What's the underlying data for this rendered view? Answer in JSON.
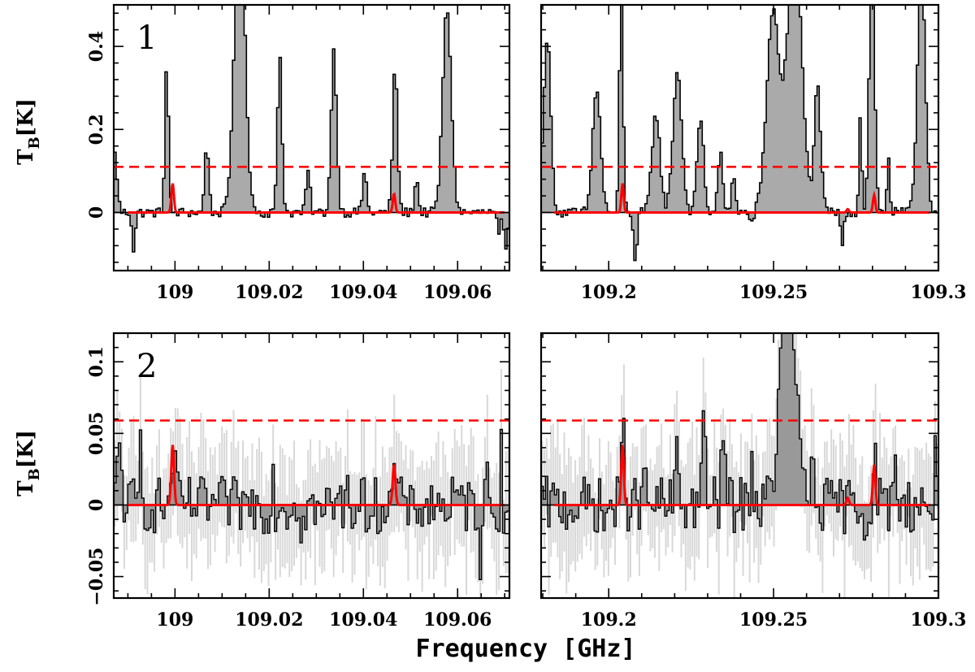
{
  "figure": {
    "xlabel": "Frequency [GHz]",
    "ylabel_main": "T",
    "ylabel_sub": "B",
    "ylabel_unit": "[K]"
  },
  "colors": {
    "fill_top": "#aaaaaa",
    "fill_bottom": "#999999",
    "noise": "#d8d8d8",
    "model": "#ff0000",
    "threshold": "#ff0000",
    "axis": "#000000"
  },
  "chart_data": [
    {
      "id": "row1-left",
      "type": "area",
      "panel_label": "1",
      "xlim": [
        108.987,
        109.071
      ],
      "ylim": [
        -0.14,
        0.5
      ],
      "xticks": [
        109,
        109.02,
        109.04,
        109.06
      ],
      "xtick_labels": [
        "109",
        "109.02",
        "109.04",
        "109.06"
      ],
      "yticks": [
        0,
        0.2,
        0.4
      ],
      "ytick_labels": [
        "0",
        "0.2",
        "0.4"
      ],
      "threshold": 0.11,
      "spectrum_peaks": [
        [
          108.987,
          0.14,
          0.6
        ],
        [
          108.998,
          0.36,
          0.45
        ],
        [
          109.0135,
          0.76,
          1.3
        ],
        [
          109.022,
          0.38,
          0.55
        ],
        [
          109.0335,
          0.39,
          0.7
        ],
        [
          109.0465,
          0.35,
          0.6
        ],
        [
          109.0575,
          0.49,
          1.1
        ],
        [
          109.0065,
          0.17,
          0.5
        ],
        [
          109.028,
          0.1,
          0.5
        ],
        [
          109.04,
          0.1,
          0.5
        ],
        [
          109.051,
          0.08,
          0.5
        ]
      ],
      "spectrum_dips": [
        [
          108.991,
          -0.09,
          0.4
        ],
        [
          109.07,
          -0.1,
          0.5
        ],
        [
          109.0685,
          -0.06,
          0.4
        ]
      ],
      "model_lines": [
        [
          108.9995,
          0.07,
          0.32
        ],
        [
          109.0465,
          0.045,
          0.32
        ]
      ],
      "model_xrange": [
        108.99,
        109.07
      ]
    },
    {
      "id": "row1-right",
      "type": "area",
      "panel_label": "",
      "xlim": [
        109.1795,
        109.3
      ],
      "ylim": [
        -0.14,
        0.5
      ],
      "xticks": [
        109.2,
        109.25,
        109.3
      ],
      "xtick_labels": [
        "109.2",
        "109.25",
        "109.3"
      ],
      "yticks": [
        0,
        0.2,
        0.4
      ],
      "ytick_labels": [
        "",
        "",
        ""
      ],
      "threshold": 0.11,
      "spectrum_peaks": [
        [
          109.181,
          0.42,
          0.9
        ],
        [
          109.196,
          0.3,
          1.0
        ],
        [
          109.2035,
          0.58,
          0.45
        ],
        [
          109.214,
          0.24,
          1.0
        ],
        [
          109.2205,
          0.34,
          1.1
        ],
        [
          109.2275,
          0.23,
          0.8
        ],
        [
          109.2335,
          0.15,
          0.55
        ],
        [
          109.2375,
          0.1,
          0.45
        ],
        [
          109.2495,
          0.48,
          1.6
        ],
        [
          109.256,
          0.66,
          1.8
        ],
        [
          109.263,
          0.3,
          0.8
        ],
        [
          109.276,
          0.24,
          0.35
        ],
        [
          109.2795,
          0.66,
          0.65
        ],
        [
          109.2845,
          0.14,
          0.35
        ],
        [
          109.2945,
          0.58,
          1.0
        ]
      ],
      "spectrum_dips": [
        [
          109.2078,
          -0.12,
          0.45
        ],
        [
          109.243,
          -0.03,
          0.45
        ],
        [
          109.2705,
          -0.09,
          0.35
        ]
      ],
      "model_lines": [
        [
          109.2042,
          0.07,
          0.3
        ],
        [
          109.2725,
          0.008,
          0.3
        ],
        [
          109.2805,
          0.042,
          0.3
        ]
      ],
      "model_xrange": [
        109.1835,
        109.2975
      ]
    },
    {
      "id": "row2-left",
      "type": "area",
      "panel_label": "2",
      "xlim": [
        108.987,
        109.071
      ],
      "ylim": [
        -0.065,
        0.12
      ],
      "xticks": [
        109,
        109.02,
        109.04,
        109.06
      ],
      "xtick_labels": [
        "109",
        "109.02",
        "109.04",
        "109.06"
      ],
      "yticks": [
        -0.05,
        0,
        0.05,
        0.1
      ],
      "ytick_labels": [
        "−0.05",
        "0",
        "0.05",
        "0.1"
      ],
      "threshold": 0.059,
      "spectrum_peaks": [
        [
          108.988,
          0.04,
          0.55
        ],
        [
          108.9925,
          0.05,
          0.2
        ],
        [
          108.9995,
          0.038,
          0.45
        ],
        [
          109.0205,
          0.022,
          0.2
        ],
        [
          109.0365,
          0.032,
          0.2
        ],
        [
          109.0465,
          0.028,
          0.45
        ],
        [
          109.069,
          0.038,
          0.2
        ],
        [
          109.066,
          0.03,
          0.15
        ]
      ],
      "spectrum_dips": [
        [
          109.031,
          -0.022,
          0.2
        ],
        [
          109.05,
          -0.018,
          0.2
        ],
        [
          109.0645,
          -0.047,
          0.15
        ],
        [
          109.0265,
          -0.012,
          0.2
        ]
      ],
      "noise": 0.02,
      "model_lines": [
        [
          108.9995,
          0.042,
          0.35
        ],
        [
          109.0465,
          0.028,
          0.35
        ]
      ],
      "model_xrange": [
        108.99,
        109.07
      ]
    },
    {
      "id": "row2-right",
      "type": "area",
      "panel_label": "",
      "xlim": [
        109.1795,
        109.3
      ],
      "ylim": [
        -0.065,
        0.12
      ],
      "xticks": [
        109.2,
        109.25,
        109.3
      ],
      "xtick_labels": [
        "109.2",
        "109.25",
        "109.3"
      ],
      "yticks": [
        -0.05,
        0,
        0.05,
        0.1
      ],
      "ytick_labels": [
        "",
        "",
        ""
      ],
      "threshold": 0.059,
      "spectrum_peaks": [
        [
          109.2042,
          0.052,
          0.45
        ],
        [
          109.2105,
          0.032,
          0.25
        ],
        [
          109.2205,
          0.035,
          0.45
        ],
        [
          109.2285,
          0.05,
          0.55
        ],
        [
          109.2345,
          0.055,
          0.45
        ],
        [
          109.243,
          0.042,
          0.3
        ],
        [
          109.254,
          0.17,
          1.8
        ],
        [
          109.2615,
          0.04,
          0.35
        ],
        [
          109.2805,
          0.03,
          0.45
        ],
        [
          109.2865,
          0.052,
          0.25
        ],
        [
          109.299,
          0.045,
          0.3
        ]
      ],
      "spectrum_dips": [
        [
          109.1985,
          -0.03,
          0.2
        ],
        [
          109.2665,
          -0.01,
          0.2
        ],
        [
          109.2775,
          -0.02,
          0.2
        ]
      ],
      "noise": 0.02,
      "model_lines": [
        [
          109.2042,
          0.042,
          0.32
        ],
        [
          109.2725,
          0.005,
          0.32
        ],
        [
          109.2805,
          0.028,
          0.32
        ]
      ],
      "model_xrange": [
        109.1835,
        109.2975
      ]
    }
  ]
}
